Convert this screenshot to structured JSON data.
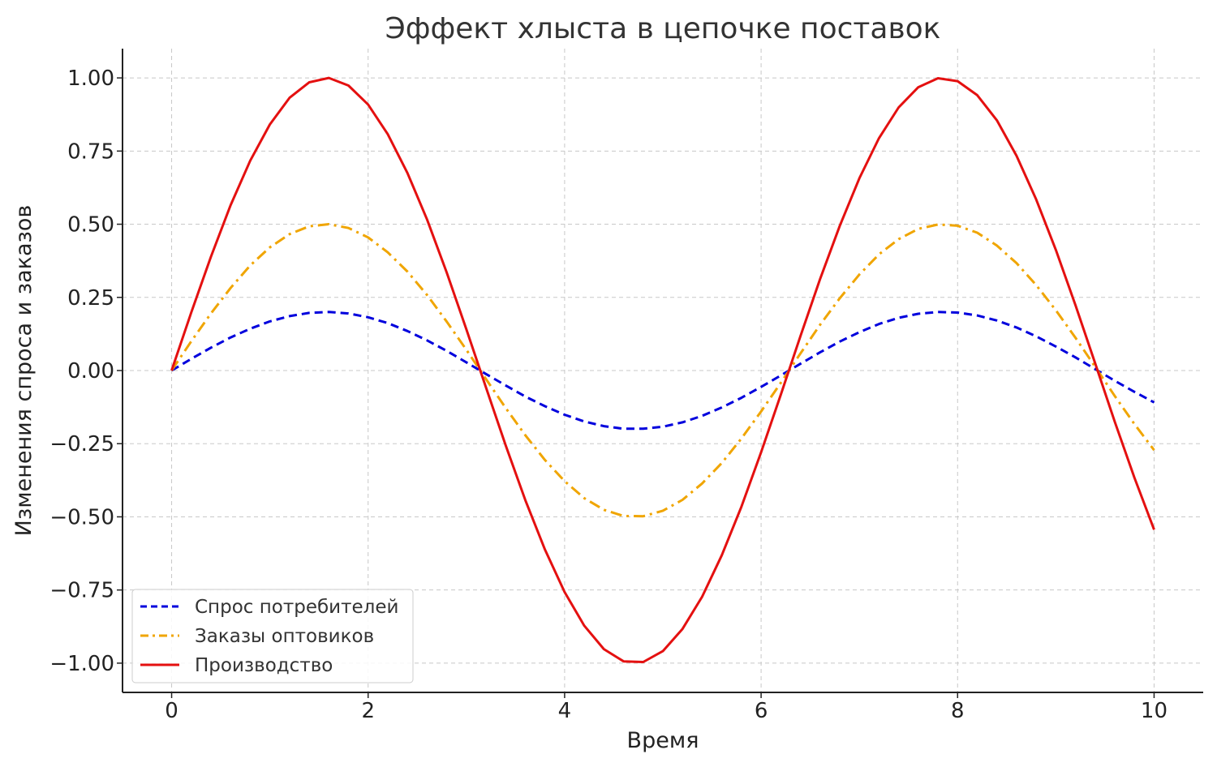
{
  "chart_data": {
    "type": "line",
    "title": "Эффект хлыста в цепочке поставок",
    "xlabel": "Время",
    "ylabel": "Изменения спроса и заказов",
    "xlim": [
      -0.5,
      10.5
    ],
    "ylim": [
      -1.1,
      1.1
    ],
    "xticks": [
      0,
      2,
      4,
      6,
      8,
      10
    ],
    "xtick_labels": [
      "0",
      "2",
      "4",
      "6",
      "8",
      "10"
    ],
    "yticks": [
      1.0,
      0.75,
      0.5,
      0.25,
      0.0,
      -0.25,
      -0.5,
      -0.75,
      -1.0
    ],
    "ytick_labels": [
      "1.00",
      "0.75",
      "0.50",
      "0.25",
      "0.00",
      "−0.25",
      "−0.50",
      "−0.75",
      "−1.00"
    ],
    "grid": true,
    "legend_position": "lower-left",
    "x": [
      0,
      0.2,
      0.4,
      0.6,
      0.8,
      1.0,
      1.2,
      1.4,
      1.6,
      1.8,
      2.0,
      2.2,
      2.4,
      2.6,
      2.8,
      3.0,
      3.2,
      3.4,
      3.6,
      3.8,
      4.0,
      4.2,
      4.4,
      4.6,
      4.8,
      5.0,
      5.2,
      5.4,
      5.6,
      5.8,
      6.0,
      6.2,
      6.4,
      6.6,
      6.8,
      7.0,
      7.2,
      7.4,
      7.6,
      7.8,
      8.0,
      8.2,
      8.4,
      8.6,
      8.8,
      9.0,
      9.2,
      9.4,
      9.6,
      9.8,
      10.0
    ],
    "series": [
      {
        "name": "Спрос потребителей",
        "color": "#0000dd",
        "style": "dashed",
        "values": [
          0,
          0.04,
          0.078,
          0.113,
          0.143,
          0.168,
          0.186,
          0.197,
          0.2,
          0.195,
          0.182,
          0.162,
          0.135,
          0.103,
          0.067,
          0.028,
          -0.012,
          -0.051,
          -0.089,
          -0.122,
          -0.151,
          -0.174,
          -0.19,
          -0.199,
          -0.199,
          -0.192,
          -0.177,
          -0.155,
          -0.126,
          -0.093,
          -0.056,
          -0.017,
          0.023,
          0.062,
          0.099,
          0.131,
          0.159,
          0.18,
          0.194,
          0.2,
          0.198,
          0.188,
          0.171,
          0.147,
          0.117,
          0.082,
          0.045,
          0.005,
          -0.035,
          -0.073,
          -0.109
        ]
      },
      {
        "name": "Заказы оптовиков",
        "color": "#f0a500",
        "style": "dashdot",
        "values": [
          0,
          0.1,
          0.195,
          0.282,
          0.359,
          0.421,
          0.466,
          0.493,
          0.5,
          0.487,
          0.455,
          0.404,
          0.338,
          0.258,
          0.167,
          0.071,
          -0.029,
          -0.128,
          -0.221,
          -0.306,
          -0.378,
          -0.436,
          -0.476,
          -0.497,
          -0.498,
          -0.479,
          -0.442,
          -0.386,
          -0.316,
          -0.232,
          -0.14,
          -0.042,
          0.058,
          0.156,
          0.247,
          0.328,
          0.397,
          0.449,
          0.484,
          0.499,
          0.495,
          0.471,
          0.427,
          0.367,
          0.292,
          0.206,
          0.112,
          0.013,
          -0.087,
          -0.183,
          -0.272
        ]
      },
      {
        "name": "Производство",
        "color": "#e41010",
        "style": "solid",
        "values": [
          0,
          0.199,
          0.389,
          0.565,
          0.717,
          0.841,
          0.932,
          0.985,
          1.0,
          0.974,
          0.909,
          0.808,
          0.675,
          0.516,
          0.335,
          0.141,
          -0.058,
          -0.256,
          -0.443,
          -0.612,
          -0.757,
          -0.872,
          -0.952,
          -0.994,
          -0.996,
          -0.959,
          -0.883,
          -0.773,
          -0.631,
          -0.465,
          -0.279,
          -0.083,
          0.117,
          0.312,
          0.494,
          0.657,
          0.794,
          0.899,
          0.968,
          0.999,
          0.989,
          0.941,
          0.855,
          0.734,
          0.585,
          0.412,
          0.223,
          0.025,
          -0.175,
          -0.366,
          -0.544
        ]
      }
    ]
  }
}
